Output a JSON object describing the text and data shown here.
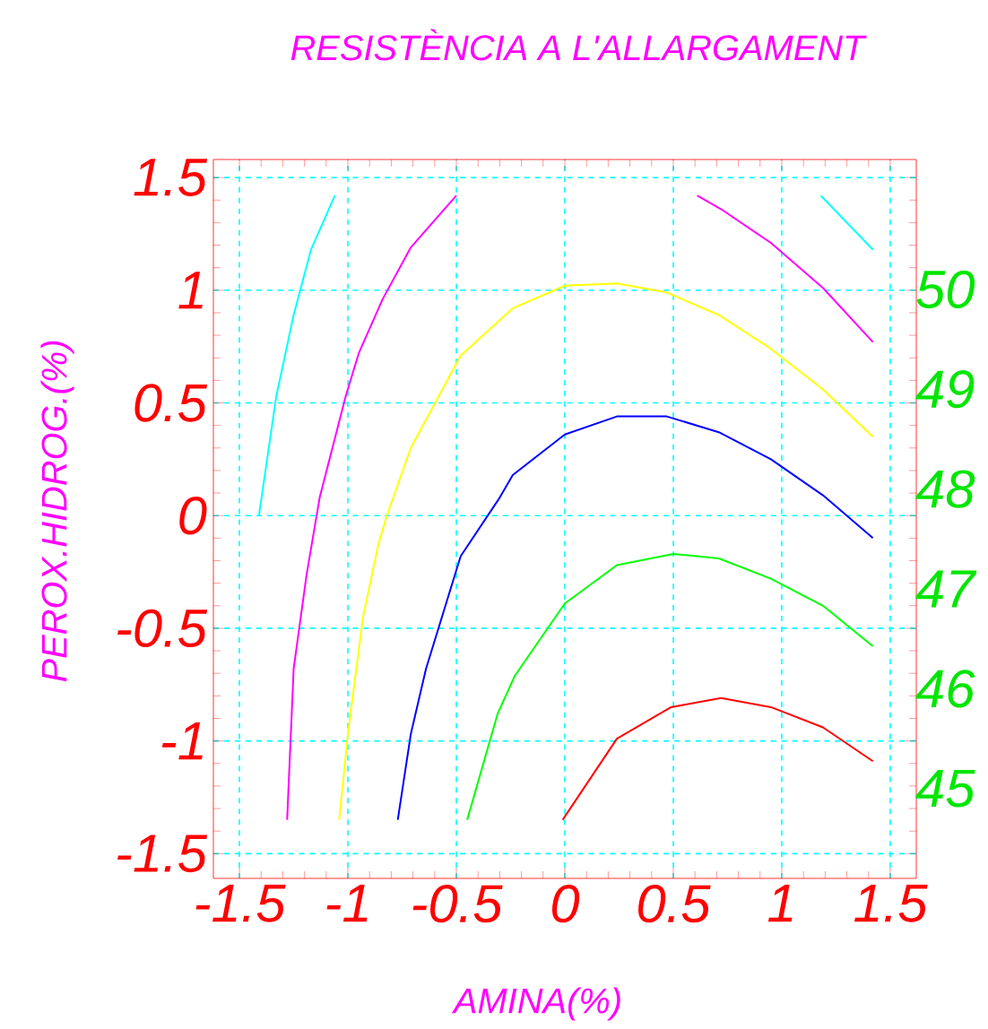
{
  "chart_data": {
    "type": "line",
    "title": "RESISTÈNCIA A L'ALLARGAMENT",
    "xlabel": "AMINA(%)",
    "ylabel": "PEROX.HIDROG.(%)",
    "xlim": [
      -1.62,
      1.62
    ],
    "ylim": [
      -1.61,
      1.58
    ],
    "xticks": [
      -1.5,
      -1,
      -0.5,
      0,
      0.5,
      1,
      1.5
    ],
    "yticks": [
      -1.5,
      -1,
      -0.5,
      0,
      0.5,
      1,
      1.5
    ],
    "y2lim": [
      44.1,
      51.3
    ],
    "y2ticks": [
      45,
      46,
      47,
      48,
      49,
      50
    ],
    "grid": true,
    "line_style": "solid",
    "series": [
      {
        "color": "#00ffff",
        "x": [
          -1.41,
          -1.33,
          -1.25,
          -1.17,
          -1.06
        ],
        "values": [
          0.0,
          0.53,
          0.89,
          1.18,
          1.42
        ]
      },
      {
        "color": "#00ffff",
        "x": [
          1.18,
          1.42
        ],
        "values": [
          1.42,
          1.18
        ]
      },
      {
        "color": "#ff00ff",
        "x": [
          -1.28,
          -1.25,
          -1.19,
          -1.13,
          -1.01,
          -0.95,
          -0.84,
          -0.71,
          -0.5
        ],
        "values": [
          -1.35,
          -0.68,
          -0.26,
          0.08,
          0.53,
          0.72,
          0.96,
          1.19,
          1.42
        ]
      },
      {
        "color": "#ff00ff",
        "x": [
          0.61,
          0.72,
          0.95,
          1.19,
          1.42
        ],
        "values": [
          1.42,
          1.36,
          1.21,
          1.01,
          0.77
        ]
      },
      {
        "color": "#ffff00",
        "x": [
          -1.04,
          -1.0,
          -0.93,
          -0.86,
          -0.82,
          -0.71,
          -0.48,
          -0.24,
          0.0,
          0.24,
          0.47,
          0.71,
          0.95,
          1.19,
          1.42
        ],
        "values": [
          -1.35,
          -0.97,
          -0.45,
          -0.13,
          0.0,
          0.3,
          0.71,
          0.92,
          1.02,
          1.03,
          0.99,
          0.89,
          0.74,
          0.56,
          0.35
        ]
      },
      {
        "color": "#0000ff",
        "x": [
          -0.77,
          -0.71,
          -0.64,
          -0.48,
          -0.3,
          -0.24,
          -0.12,
          0.0,
          0.24,
          0.47,
          0.71,
          0.95,
          1.19,
          1.42
        ],
        "values": [
          -1.35,
          -0.97,
          -0.68,
          -0.18,
          0.08,
          0.18,
          0.27,
          0.36,
          0.44,
          0.44,
          0.37,
          0.25,
          0.09,
          -0.1
        ]
      },
      {
        "color": "#00ff00",
        "x": [
          -0.45,
          -0.31,
          -0.23,
          0.0,
          0.24,
          0.5,
          0.71,
          0.95,
          1.19,
          1.42
        ],
        "values": [
          -1.35,
          -0.88,
          -0.71,
          -0.39,
          -0.22,
          -0.17,
          -0.19,
          -0.28,
          -0.4,
          -0.58
        ]
      },
      {
        "color": "#ff0000",
        "x": [
          -0.01,
          0.24,
          0.49,
          0.72,
          0.95,
          1.19,
          1.42
        ],
        "values": [
          -1.35,
          -0.99,
          -0.85,
          -0.81,
          -0.85,
          -0.94,
          -1.09
        ]
      }
    ]
  }
}
